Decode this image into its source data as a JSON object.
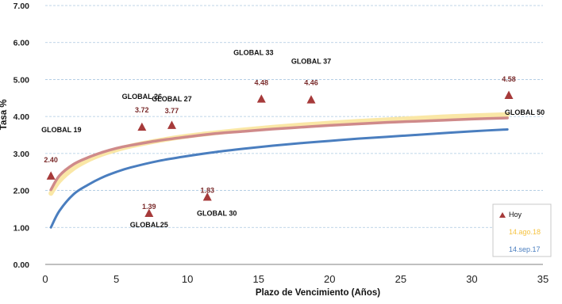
{
  "chart_data": {
    "type": "line",
    "title": "",
    "xlabel": "Plazo de Vencimiento  (Años)",
    "ylabel": "Tasa %",
    "xlim": [
      0,
      35
    ],
    "ylim": [
      0,
      7
    ],
    "xticks": [
      0,
      5,
      10,
      15,
      20,
      25,
      30,
      35
    ],
    "xtick_labels": [
      "0",
      "5",
      "10",
      "15",
      "20",
      "25",
      "30",
      "35"
    ],
    "yticks": [
      0,
      1,
      2,
      3,
      4,
      5,
      6,
      7
    ],
    "ytick_labels": [
      "0.00",
      "1.00",
      "2.00",
      "3.00",
      "4.00",
      "5.00",
      "6.00",
      "7.00"
    ],
    "grid": true,
    "legend_position": "bottom-right",
    "colors": {
      "hoy": "#a63a3a",
      "ago18": "#f5c342",
      "ago18_fill": "#fae7a6",
      "sep17": "#4a7ebf",
      "value_label": "#7a2b2b"
    },
    "series": [
      {
        "name": "14.ago.18",
        "kind": "curve",
        "x": [
          0.4,
          1,
          2,
          3,
          4,
          5,
          6,
          8,
          10,
          12,
          14,
          16,
          18,
          20,
          22,
          24,
          26,
          28,
          30,
          32.5
        ],
        "y": [
          1.92,
          2.26,
          2.6,
          2.82,
          2.98,
          3.1,
          3.2,
          3.35,
          3.47,
          3.56,
          3.64,
          3.71,
          3.77,
          3.82,
          3.87,
          3.91,
          3.95,
          3.99,
          4.02,
          4.05
        ]
      },
      {
        "name": "",
        "kind": "curve",
        "x": [
          0.4,
          1,
          2,
          3,
          4,
          5,
          6,
          8,
          10,
          12,
          14,
          16,
          18,
          20,
          22,
          24,
          26,
          28,
          30,
          32.5
        ],
        "y": [
          2.02,
          2.4,
          2.71,
          2.89,
          3.03,
          3.14,
          3.22,
          3.35,
          3.45,
          3.54,
          3.6,
          3.66,
          3.71,
          3.76,
          3.8,
          3.84,
          3.87,
          3.9,
          3.93,
          3.96
        ]
      },
      {
        "name": "14.sep.17",
        "kind": "curve",
        "x": [
          0.4,
          1,
          2,
          3,
          4,
          5,
          6,
          8,
          10,
          12,
          14,
          16,
          18,
          20,
          22,
          24,
          26,
          28,
          30,
          32.5
        ],
        "y": [
          1.0,
          1.45,
          1.9,
          2.15,
          2.35,
          2.5,
          2.62,
          2.8,
          2.93,
          3.04,
          3.13,
          3.21,
          3.28,
          3.34,
          3.4,
          3.45,
          3.5,
          3.55,
          3.6,
          3.65
        ]
      },
      {
        "name": "Hoy",
        "kind": "points",
        "points": [
          {
            "label": "GLOBAL 19",
            "x": 0.4,
            "y": 2.4,
            "value_label": "2.40"
          },
          {
            "label": "GLOBAL 26",
            "x": 6.8,
            "y": 3.72,
            "value_label": "3.72"
          },
          {
            "label": "GLOBAL25",
            "x": 7.3,
            "y": 1.39,
            "value_label": "1.39"
          },
          {
            "label": "GLOBAL 27",
            "x": 8.9,
            "y": 3.77,
            "value_label": "3.77"
          },
          {
            "label": "GLOBAL 30",
            "x": 11.4,
            "y": 1.83,
            "value_label": "1.83"
          },
          {
            "label": "GLOBAL 33",
            "x": 15.2,
            "y": 4.48,
            "value_label": "4.48"
          },
          {
            "label": "GLOBAL 37",
            "x": 18.7,
            "y": 4.46,
            "value_label": "4.46"
          },
          {
            "label": "GLOBAL 50",
            "x": 32.6,
            "y": 4.58,
            "value_label": "4.58"
          }
        ]
      }
    ]
  }
}
